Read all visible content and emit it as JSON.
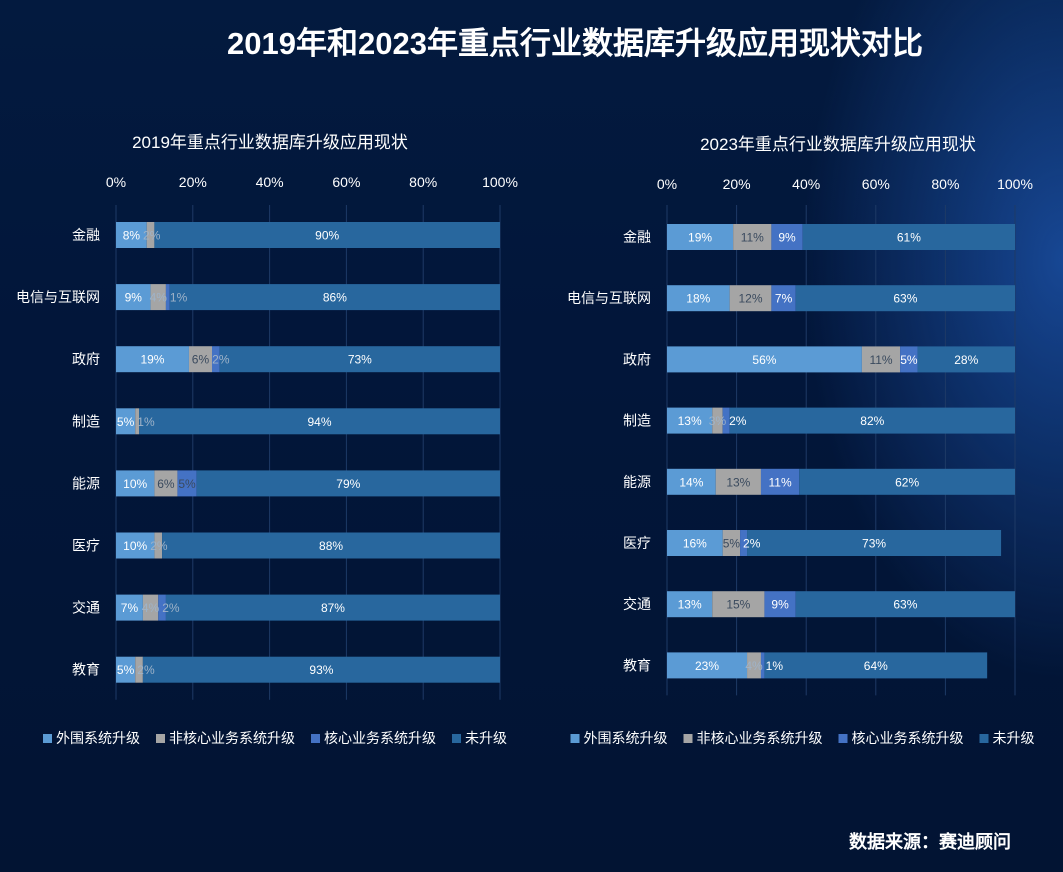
{
  "title": "2019年和2023年重点行业数据库升级应用现状对比",
  "source": "数据来源：赛迪顾问",
  "colors": {
    "外围系统升级": "#5b9bd5",
    "非核心业务系统升级": "#a5a5a5",
    "核心业务系统升级": "#4472c4",
    "未升级": "#28679e"
  },
  "chart_data": [
    {
      "type": "bar",
      "orientation": "horizontal",
      "stacked": "percent",
      "title": "2019年重点行业数据库升级应用现状",
      "categories": [
        "金融",
        "电信与互联网",
        "政府",
        "制造",
        "能源",
        "医疗",
        "交通",
        "教育"
      ],
      "xticks": [
        "0%",
        "20%",
        "40%",
        "60%",
        "80%",
        "100%"
      ],
      "xlim": [
        0,
        100
      ],
      "legend": "bottom",
      "series": [
        {
          "name": "外围系统升级",
          "values": [
            8,
            9,
            19,
            5,
            10,
            10,
            7,
            5
          ]
        },
        {
          "name": "非核心业务系统升级",
          "values": [
            2,
            4,
            6,
            1,
            6,
            2,
            4,
            2
          ]
        },
        {
          "name": "核心业务系统升级",
          "values": [
            0,
            1,
            2,
            0,
            5,
            0,
            2,
            0
          ]
        },
        {
          "name": "未升级",
          "values": [
            90,
            86,
            73,
            94,
            79,
            88,
            87,
            93
          ]
        }
      ]
    },
    {
      "type": "bar",
      "orientation": "horizontal",
      "stacked": "percent",
      "title": "2023年重点行业数据库升级应用现状",
      "categories": [
        "金融",
        "电信与互联网",
        "政府",
        "制造",
        "能源",
        "医疗",
        "交通",
        "教育"
      ],
      "xticks": [
        "0%",
        "20%",
        "40%",
        "60%",
        "80%",
        "100%"
      ],
      "xlim": [
        0,
        100
      ],
      "legend": "bottom",
      "series": [
        {
          "name": "外围系统升级",
          "values": [
            19,
            18,
            56,
            13,
            14,
            16,
            13,
            23
          ]
        },
        {
          "name": "非核心业务系统升级",
          "values": [
            11,
            12,
            11,
            3,
            13,
            5,
            15,
            4
          ]
        },
        {
          "name": "核心业务系统升级",
          "values": [
            9,
            7,
            5,
            2,
            11,
            2,
            9,
            1
          ]
        },
        {
          "name": "未升级",
          "values": [
            61,
            63,
            28,
            82,
            62,
            73,
            63,
            64
          ]
        }
      ]
    }
  ]
}
